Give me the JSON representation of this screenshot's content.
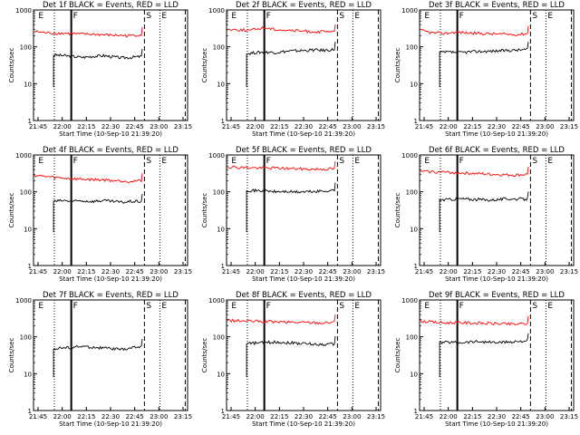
{
  "common": {
    "ylabel": "Counts/sec",
    "xlabel": "Start Time (10-Sep-10 21:39:20)",
    "x_ticks": [
      "21:45",
      "22:00",
      "22:15",
      "22:30",
      "22:45",
      "23:00",
      "23:15"
    ],
    "y_ticks": [
      "1",
      "10",
      "100",
      "1000"
    ],
    "colors": {
      "events": "#000000",
      "lld": "#ff0000"
    }
  },
  "chart_data": [
    {
      "type": "line",
      "title": "Det 1f BLACK = Events, RED = LLD",
      "xlabel": "Start Time (10-Sep-10 21:39:20)",
      "ylabel": "Counts/sec",
      "yscale": "log",
      "ylim": [
        1,
        1000
      ],
      "markers": [
        "E",
        "F",
        "S",
        "E"
      ],
      "series": [
        {
          "name": "Events",
          "values": [
            60,
            58,
            55,
            52,
            55,
            58,
            54,
            50,
            52,
            55
          ]
        },
        {
          "name": "LLD",
          "values": [
            260,
            240,
            235,
            230,
            220,
            220,
            210,
            205,
            200,
            215
          ]
        }
      ]
    },
    {
      "type": "line",
      "title": "Det 2f BLACK = Events, RED = LLD",
      "xlabel": "Start Time (10-Sep-10 21:39:20)",
      "ylabel": "Counts/sec",
      "yscale": "log",
      "ylim": [
        1,
        1000
      ],
      "markers": [
        "E",
        "F",
        "S",
        "E"
      ],
      "series": [
        {
          "name": "Events",
          "values": [
            65,
            70,
            72,
            70,
            75,
            78,
            80,
            82,
            80,
            85
          ]
        },
        {
          "name": "LLD",
          "values": [
            300,
            290,
            280,
            330,
            300,
            280,
            270,
            260,
            255,
            250
          ]
        }
      ]
    },
    {
      "type": "line",
      "title": "Det 3f BLACK = Events, RED = LLD",
      "xlabel": "Start Time (10-Sep-10 21:39:20)",
      "ylabel": "Counts/sec",
      "yscale": "log",
      "ylim": [
        1,
        1000
      ],
      "markers": [
        "E",
        "F",
        "S",
        "E"
      ],
      "series": [
        {
          "name": "Events",
          "values": [
            70,
            72,
            70,
            73,
            75,
            76,
            78,
            80,
            82,
            85
          ]
        },
        {
          "name": "LLD",
          "values": [
            280,
            240,
            230,
            250,
            240,
            230,
            225,
            220,
            215,
            230
          ]
        }
      ]
    },
    {
      "type": "line",
      "title": "Det 4f BLACK = Events, RED = LLD",
      "xlabel": "Start Time (10-Sep-10 21:39:20)",
      "ylabel": "Counts/sec",
      "yscale": "log",
      "ylim": [
        1,
        1000
      ],
      "markers": [
        "E",
        "F",
        "S",
        "E"
      ],
      "series": [
        {
          "name": "Events",
          "values": [
            55,
            58,
            55,
            57,
            55,
            58,
            55,
            52,
            55,
            55
          ]
        },
        {
          "name": "LLD",
          "values": [
            280,
            260,
            240,
            230,
            220,
            215,
            210,
            200,
            195,
            200
          ]
        }
      ]
    },
    {
      "type": "line",
      "title": "Det 5f BLACK = Events, RED = LLD",
      "xlabel": "Start Time (10-Sep-10 21:39:20)",
      "ylabel": "Counts/sec",
      "yscale": "log",
      "ylim": [
        1,
        1000
      ],
      "markers": [
        "E",
        "F",
        "S",
        "E"
      ],
      "series": [
        {
          "name": "Events",
          "values": [
            110,
            108,
            105,
            100,
            102,
            98,
            100,
            102,
            105,
            110
          ]
        },
        {
          "name": "LLD",
          "values": [
            480,
            460,
            450,
            440,
            445,
            430,
            420,
            410,
            415,
            420
          ]
        }
      ]
    },
    {
      "type": "line",
      "title": "Det 6f BLACK = Events, RED = LLD",
      "xlabel": "Start Time (10-Sep-10 21:39:20)",
      "ylabel": "Counts/sec",
      "yscale": "log",
      "ylim": [
        1,
        1000
      ],
      "markers": [
        "E",
        "F",
        "S",
        "E"
      ],
      "series": [
        {
          "name": "Events",
          "values": [
            60,
            62,
            65,
            63,
            62,
            60,
            62,
            65,
            64,
            63
          ]
        },
        {
          "name": "LLD",
          "values": [
            360,
            350,
            340,
            330,
            320,
            310,
            300,
            290,
            285,
            300
          ]
        }
      ]
    },
    {
      "type": "line",
      "title": "Det 7f BLACK = Events, RED = LLD",
      "xlabel": "Start Time (10-Sep-10 21:39:20)",
      "ylabel": "Counts/sec",
      "yscale": "log",
      "ylim": [
        1,
        1000
      ],
      "markers": [
        "E",
        "F",
        "S",
        "E"
      ],
      "series": [
        {
          "name": "Events",
          "values": [
            48,
            50,
            52,
            55,
            52,
            50,
            48,
            45,
            50,
            55
          ]
        }
      ]
    },
    {
      "type": "line",
      "title": "Det 8f BLACK = Events, RED = LLD",
      "xlabel": "Start Time (10-Sep-10 21:39:20)",
      "ylabel": "Counts/sec",
      "yscale": "log",
      "ylim": [
        1,
        1000
      ],
      "markers": [
        "E",
        "F",
        "S",
        "E"
      ],
      "series": [
        {
          "name": "Events",
          "values": [
            65,
            68,
            70,
            72,
            70,
            68,
            65,
            63,
            62,
            65
          ]
        },
        {
          "name": "LLD",
          "values": [
            280,
            270,
            265,
            260,
            255,
            250,
            248,
            245,
            240,
            250
          ]
        }
      ]
    },
    {
      "type": "line",
      "title": "Det 9f BLACK = Events, RED = LLD",
      "xlabel": "Start Time (10-Sep-10 21:39:20)",
      "ylabel": "Counts/sec",
      "yscale": "log",
      "ylim": [
        1,
        1000
      ],
      "markers": [
        "E",
        "F",
        "S",
        "E"
      ],
      "series": [
        {
          "name": "Events",
          "values": [
            70,
            72,
            70,
            73,
            75,
            72,
            70,
            72,
            75,
            78
          ]
        },
        {
          "name": "LLD",
          "values": [
            270,
            250,
            240,
            245,
            240,
            235,
            230,
            225,
            220,
            230
          ]
        }
      ]
    }
  ]
}
